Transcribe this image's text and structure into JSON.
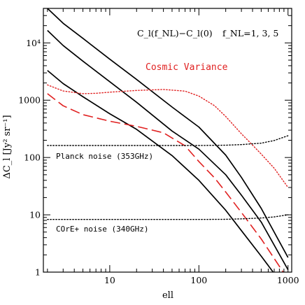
{
  "chart_data": {
    "type": "line",
    "title": "",
    "xlabel": "ell",
    "ylabel": "ΔC_l [Jy² sr⁻¹]",
    "x_scale": "log",
    "y_scale": "log",
    "xlim": [
      1.8,
      1100
    ],
    "ylim": [
      1,
      40000
    ],
    "x_ticks": [
      {
        "value": 10,
        "label": "10"
      },
      {
        "value": 100,
        "label": "100"
      },
      {
        "value": 1000,
        "label": "1000"
      }
    ],
    "y_ticks": [
      {
        "value": 1,
        "label": "1"
      },
      {
        "value": 10,
        "label": "10"
      },
      {
        "value": 100,
        "label": "100"
      },
      {
        "value": 1000,
        "label": "1000"
      },
      {
        "value": 10000,
        "label": "10⁴"
      }
    ],
    "annotations": {
      "equation": "C_l(f_NL)−C_l(0)",
      "fnl_values": "f_NL=1, 3, 5",
      "cosmic_variance": "Cosmic Variance",
      "planck_noise": "Planck noise (353GHz)",
      "core_noise": "COrE+ noise (340GHz)"
    },
    "colors": {
      "black": "#000000",
      "red": "#e02020"
    },
    "series": [
      {
        "color": "#000000",
        "style": "solid",
        "x": [
          2,
          3,
          5,
          10,
          20,
          50,
          100,
          200,
          300,
          500,
          1000
        ],
        "y": [
          40000,
          22000,
          12000,
          5200,
          2300,
          760,
          340,
          110,
          45,
          13,
          1.8
        ]
      },
      {
        "color": "#000000",
        "style": "solid",
        "x": [
          2,
          3,
          5,
          10,
          20,
          50,
          100,
          200,
          300,
          500,
          1000
        ],
        "y": [
          16500,
          9000,
          4800,
          2100,
          920,
          290,
          140,
          50,
          22,
          7.5,
          1.1
        ]
      },
      {
        "color": "#000000",
        "style": "solid",
        "x": [
          2,
          3,
          5,
          10,
          20,
          50,
          100,
          200,
          300,
          500,
          1000
        ],
        "y": [
          3300,
          1950,
          1150,
          580,
          310,
          108,
          40,
          12,
          5.3,
          1.9,
          0.45
        ]
      },
      {
        "color": "#e02020",
        "style": "dashed",
        "x": [
          2,
          3,
          5,
          10,
          20,
          40,
          70,
          100,
          150,
          200,
          300,
          500,
          1000
        ],
        "y": [
          1300,
          800,
          560,
          430,
          350,
          270,
          160,
          85,
          44,
          25,
          11,
          3.8,
          0.75
        ]
      },
      {
        "color": "#e02020",
        "style": "dotted",
        "x": [
          2,
          3,
          5,
          7,
          10,
          20,
          40,
          70,
          100,
          150,
          200,
          300,
          400,
          500,
          700,
          1000
        ],
        "y": [
          1850,
          1450,
          1300,
          1320,
          1380,
          1480,
          1540,
          1440,
          1180,
          800,
          520,
          260,
          165,
          115,
          65,
          30
        ]
      },
      {
        "color": "#000000",
        "style": "dotted",
        "x": [
          2,
          10,
          50,
          100,
          200,
          300,
          500,
          700,
          1000
        ],
        "y": [
          162,
          162,
          162,
          162,
          164,
          168,
          178,
          198,
          240
        ]
      },
      {
        "color": "#000000",
        "style": "dotted",
        "x": [
          2,
          10,
          50,
          100,
          200,
          300,
          500,
          700,
          1000
        ],
        "y": [
          8.3,
          8.3,
          8.3,
          8.3,
          8.35,
          8.5,
          8.8,
          9.2,
          10
        ]
      }
    ]
  }
}
